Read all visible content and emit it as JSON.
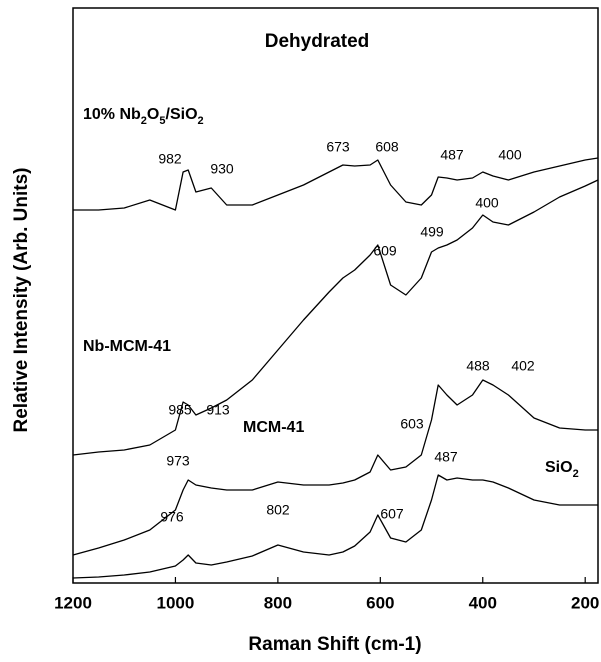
{
  "chart_data": {
    "type": "line",
    "title": "Dehydrated",
    "x_label": "Raman Shift (cm-1)",
    "y_label": "Relative Intensity (Arb. Units)",
    "x": [
      1200,
      1150,
      1100,
      1050,
      1000,
      985,
      975,
      960,
      930,
      900,
      850,
      800,
      750,
      700,
      673,
      650,
      620,
      605,
      580,
      550,
      520,
      500,
      487,
      470,
      450,
      420,
      400,
      380,
      350,
      300,
      250,
      200,
      175
    ],
    "series": [
      {
        "name": "10% Nb2O5/SiO2",
        "color": "#000000",
        "values": [
          400,
          400,
          402,
          410,
          400,
          438,
          440,
          418,
          422,
          405,
          405,
          415,
          425,
          438,
          445,
          444,
          445,
          450,
          425,
          408,
          405,
          415,
          433,
          432,
          430,
          432,
          438,
          434,
          430,
          438,
          444,
          450,
          452
        ]
      },
      {
        "name": "Nb-MCM-41",
        "color": "#000000",
        "values": [
          155,
          158,
          160,
          165,
          180,
          208,
          205,
          195,
          202,
          210,
          230,
          260,
          290,
          318,
          332,
          340,
          355,
          365,
          325,
          315,
          332,
          358,
          362,
          365,
          370,
          382,
          395,
          388,
          385,
          398,
          413,
          424,
          430
        ]
      },
      {
        "name": "MCM-41",
        "color": "#000000",
        "values": [
          55,
          62,
          70,
          80,
          100,
          120,
          130,
          125,
          122,
          120,
          120,
          128,
          125,
          125,
          127,
          130,
          138,
          155,
          140,
          143,
          155,
          190,
          225,
          215,
          205,
          215,
          230,
          225,
          215,
          192,
          182,
          180,
          180
        ]
      },
      {
        "name": "SiO2",
        "color": "#000000",
        "values": [
          32,
          33,
          35,
          38,
          44,
          50,
          55,
          47,
          45,
          48,
          54,
          65,
          58,
          55,
          58,
          64,
          78,
          95,
          72,
          68,
          80,
          110,
          135,
          130,
          132,
          130,
          130,
          128,
          122,
          110,
          105,
          105,
          105
        ]
      }
    ],
    "annotations": [
      "982",
      "930",
      "673",
      "608",
      "487",
      "400",
      "609",
      "499",
      "400",
      "985",
      "913",
      "488",
      "402",
      "603",
      "973",
      "487",
      "607",
      "802",
      "976"
    ],
    "xlim": [
      1200,
      175
    ],
    "xticks": [
      1200,
      1000,
      800,
      600,
      400,
      200
    ],
    "ylim": [
      27,
      602
    ]
  }
}
